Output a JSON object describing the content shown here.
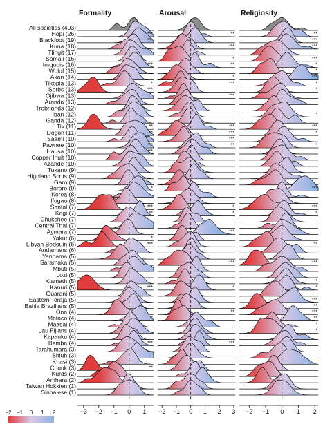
{
  "chart_data": {
    "type": "ridgeline",
    "panels": [
      {
        "title": "Formality",
        "xticks": [
          "−3",
          "−2",
          "−1",
          "0",
          "1"
        ],
        "xlim": [
          -3.4,
          1.6
        ],
        "zero_line": 0
      },
      {
        "title": "Arousal",
        "xticks": [
          "−2",
          "−1",
          "0",
          "1",
          "2",
          "3"
        ],
        "xlim": [
          -2.3,
          3.1
        ],
        "zero_line": 0
      },
      {
        "title": "Religiosity",
        "xticks": [
          "−2",
          "−1",
          "0",
          "1",
          "2"
        ],
        "xlim": [
          -2.6,
          2.2
        ],
        "zero_line": 0
      }
    ],
    "colorbar": {
      "ticks": [
        "−2",
        "−1",
        "0",
        "1",
        "2"
      ],
      "low_color": "#e03c3c",
      "mid_color": "#d9c9e6",
      "high_color": "#8eb2e3",
      "range": [
        -2,
        2
      ]
    },
    "rows": [
      {
        "label": "All societies (493)",
        "peaks": [
          0.3,
          0.2,
          0.0
        ],
        "sig": [
          "",
          "",
          ""
        ]
      },
      {
        "label": "Hopi (26)",
        "peaks": [
          0.5,
          0.1,
          0.1
        ],
        "sig": [
          "***",
          "**",
          "**"
        ]
      },
      {
        "label": "Blackfoot (19)",
        "peaks": [
          0.6,
          0.3,
          0.2
        ],
        "sig": [
          "***",
          "",
          "***"
        ]
      },
      {
        "label": "Kuna (18)",
        "peaks": [
          0.3,
          -0.6,
          0.4
        ],
        "sig": [
          "",
          "***",
          "***"
        ]
      },
      {
        "label": "Tlingit (17)",
        "peaks": [
          0.2,
          -0.2,
          -0.3
        ],
        "sig": [
          "",
          "",
          ""
        ]
      },
      {
        "label": "Somali (16)",
        "peaks": [
          0.1,
          -0.8,
          -0.9
        ],
        "sig": [
          "",
          "*",
          "***"
        ]
      },
      {
        "label": "Iroquois (16)",
        "peaks": [
          0.5,
          0.3,
          0.3
        ],
        "sig": [
          "***",
          "**",
          "*"
        ]
      },
      {
        "label": "Wolof (15)",
        "peaks": [
          0.0,
          -0.5,
          -0.7
        ],
        "sig": [
          "",
          "",
          "*"
        ]
      },
      {
        "label": "Akan (14)",
        "peaks": [
          -0.2,
          -0.8,
          1.1
        ],
        "sig": [
          "",
          "*",
          "***"
        ]
      },
      {
        "label": "Tikopia (13)",
        "peaks": [
          -0.3,
          -0.7,
          -0.2
        ],
        "sig": [
          "*",
          "***",
          "*"
        ]
      },
      {
        "label": "Serbs (13)",
        "peaks": [
          -2.3,
          -0.6,
          -0.4
        ],
        "sig": [
          "***",
          "",
          "*"
        ]
      },
      {
        "label": "Ojibwa (13)",
        "peaks": [
          0.2,
          -0.5,
          -0.2
        ],
        "sig": [
          "",
          "***",
          ""
        ]
      },
      {
        "label": "Aranda (13)",
        "peaks": [
          0.0,
          -0.3,
          0.0
        ],
        "sig": [
          "",
          "",
          ""
        ]
      },
      {
        "label": "Trobriands (12)",
        "peaks": [
          0.4,
          -0.4,
          -0.5
        ],
        "sig": [
          "",
          "",
          ""
        ]
      },
      {
        "label": "Iban (12)",
        "peaks": [
          0.3,
          -0.2,
          0.0
        ],
        "sig": [
          "",
          "",
          "*"
        ]
      },
      {
        "label": "Ganda (12)",
        "peaks": [
          0.1,
          0.0,
          -0.3
        ],
        "sig": [
          "",
          "",
          ""
        ]
      },
      {
        "label": "Tiv (11)",
        "peaks": [
          -2.3,
          0.4,
          -0.9
        ],
        "sig": [
          "**",
          "***",
          "***"
        ]
      },
      {
        "label": "Dogon (11)",
        "peaks": [
          0.4,
          -1.0,
          -0.2
        ],
        "sig": [
          "**",
          "***",
          "*"
        ]
      },
      {
        "label": "Saami (10)",
        "peaks": [
          0.2,
          -0.5,
          0.1
        ],
        "sig": [
          "",
          "***",
          ""
        ]
      },
      {
        "label": "Pawnee (10)",
        "peaks": [
          0.6,
          0.4,
          -0.5
        ],
        "sig": [
          "***",
          "**",
          "*"
        ]
      },
      {
        "label": "Hausa (10)",
        "peaks": [
          0.5,
          0.1,
          -0.2
        ],
        "sig": [
          "***",
          "",
          ""
        ]
      },
      {
        "label": "Copper Inuit (10)",
        "peaks": [
          0.1,
          0.0,
          0.0
        ],
        "sig": [
          "",
          "",
          ""
        ]
      },
      {
        "label": "Azande (10)",
        "peaks": [
          0.2,
          -0.3,
          -0.3
        ],
        "sig": [
          "",
          "",
          ""
        ]
      },
      {
        "label": "Tukano (9)",
        "peaks": [
          0.3,
          -0.1,
          0.1
        ],
        "sig": [
          "",
          "",
          ""
        ]
      },
      {
        "label": "Highland Scots (9)",
        "peaks": [
          0.0,
          0.2,
          -0.2
        ],
        "sig": [
          "",
          "",
          ""
        ]
      },
      {
        "label": "Garo (9)",
        "peaks": [
          0.0,
          -0.8,
          -0.4
        ],
        "sig": [
          "",
          "",
          ""
        ]
      },
      {
        "label": "Bororo (9)",
        "peaks": [
          0.4,
          -0.5,
          1.2
        ],
        "sig": [
          "*",
          "",
          "***"
        ]
      },
      {
        "label": "Korea (8)",
        "peaks": [
          0.5,
          0.2,
          0.0
        ],
        "sig": [
          "",
          "",
          ""
        ]
      },
      {
        "label": "Ifugao (8)",
        "peaks": [
          -0.1,
          -0.3,
          -0.2
        ],
        "sig": [
          "",
          "",
          ""
        ]
      },
      {
        "label": "Santal (7)",
        "peaks": [
          -1.8,
          -0.7,
          -1.2
        ],
        "sig": [
          "***",
          "*",
          "***"
        ]
      },
      {
        "label": "Kogi (7)",
        "peaks": [
          0.7,
          0.5,
          0.0
        ],
        "sig": [
          "**",
          "*",
          "*"
        ]
      },
      {
        "label": "Chukchee (7)",
        "peaks": [
          0.1,
          -0.3,
          0.0
        ],
        "sig": [
          "",
          "",
          ""
        ]
      },
      {
        "label": "Central Thai (7)",
        "peaks": [
          0.4,
          -0.2,
          0.2
        ],
        "sig": [
          "",
          "",
          ""
        ]
      },
      {
        "label": "Aymara (7)",
        "peaks": [
          -0.2,
          1.3,
          0.0
        ],
        "sig": [
          "",
          "***",
          ""
        ]
      },
      {
        "label": "Yakut (6)",
        "peaks": [
          -1.3,
          -0.6,
          0.0
        ],
        "sig": [
          "*",
          "",
          ""
        ]
      },
      {
        "label": "Libyan Bedouin (6)",
        "peaks": [
          -1.8,
          -0.2,
          -1.0
        ],
        "sig": [
          "***",
          "",
          "**"
        ]
      },
      {
        "label": "Andamans (6)",
        "peaks": [
          0.1,
          0.1,
          -0.2
        ],
        "sig": [
          "",
          "",
          ""
        ]
      },
      {
        "label": "Yanoama (5)",
        "peaks": [
          -0.5,
          -0.1,
          0.3
        ],
        "sig": [
          "",
          "",
          ""
        ]
      },
      {
        "label": "Saramaka (5)",
        "peaks": [
          0.2,
          -0.9,
          -1.5
        ],
        "sig": [
          "",
          "***",
          "***"
        ]
      },
      {
        "label": "Mbuti (5)",
        "peaks": [
          0.3,
          0.4,
          0.0
        ],
        "sig": [
          "",
          "",
          ""
        ]
      },
      {
        "label": "Lozi (5)",
        "peaks": [
          -0.2,
          -0.1,
          0.2
        ],
        "sig": [
          "",
          "",
          ""
        ]
      },
      {
        "label": "Klamath (5)",
        "peaks": [
          0.3,
          -0.4,
          0.2
        ],
        "sig": [
          "",
          "",
          "*"
        ]
      },
      {
        "label": "Kanuri (5)",
        "peaks": [
          -2.8,
          0.5,
          0.3
        ],
        "sig": [
          "***",
          "*",
          "*"
        ]
      },
      {
        "label": "Guarani (5)",
        "peaks": [
          0.2,
          -0.5,
          -0.4
        ],
        "sig": [
          "",
          "",
          ""
        ]
      },
      {
        "label": "Eastern Toraja (5)",
        "peaks": [
          0.0,
          0.3,
          0.5
        ],
        "sig": [
          "",
          "",
          "***"
        ]
      },
      {
        "label": "Bahia Brazilians (5)",
        "peaks": [
          0.3,
          -0.3,
          -1.4
        ],
        "sig": [
          "",
          "",
          "**"
        ]
      },
      {
        "label": "Ona (4)",
        "peaks": [
          -0.7,
          -0.9,
          -0.4
        ],
        "sig": [
          "",
          "**",
          "***"
        ]
      },
      {
        "label": "Mataco (4)",
        "peaks": [
          0.5,
          -0.5,
          0.6
        ],
        "sig": [
          "*",
          "",
          "**"
        ]
      },
      {
        "label": "Maasai (4)",
        "peaks": [
          0.2,
          0.4,
          -0.6
        ],
        "sig": [
          "",
          "",
          "*"
        ]
      },
      {
        "label": "Lau Fijians (4)",
        "peaks": [
          0.4,
          0.2,
          -0.7
        ],
        "sig": [
          "",
          "",
          "*"
        ]
      },
      {
        "label": "Kapauku (4)",
        "peaks": [
          -0.2,
          0.5,
          0.3
        ],
        "sig": [
          "",
          "",
          ""
        ]
      },
      {
        "label": "Bemba (4)",
        "peaks": [
          0.3,
          0.6,
          0.0
        ],
        "sig": [
          "***",
          "***",
          ""
        ]
      },
      {
        "label": "Tarahumara (3)",
        "peaks": [
          0.1,
          -0.1,
          0.4
        ],
        "sig": [
          "",
          "",
          ""
        ]
      },
      {
        "label": "Shluh (3)",
        "peaks": [
          0.5,
          0.0,
          -0.2
        ],
        "sig": [
          "",
          "",
          ""
        ]
      },
      {
        "label": "Khasi (3)",
        "peaks": [
          -0.1,
          -0.6,
          0.4
        ],
        "sig": [
          "",
          "",
          ""
        ]
      },
      {
        "label": "Chuuk (3)",
        "peaks": [
          -2.4,
          -0.3,
          -0.5
        ],
        "sig": [
          "**",
          "",
          ""
        ]
      },
      {
        "label": "Kurds (2)",
        "peaks": [
          -1.0,
          0.2,
          -0.9
        ],
        "sig": [
          "",
          "",
          ""
        ]
      },
      {
        "label": "Amhara (2)",
        "peaks": [
          -1.6,
          0.9,
          -1.2
        ],
        "sig": [
          "",
          "",
          ""
        ]
      },
      {
        "label": "Taiwan Hokkien (1)",
        "peaks": [
          0.0,
          0.0,
          0.0
        ],
        "sig": [
          "",
          "",
          ""
        ]
      },
      {
        "label": "Sinhalese (1)",
        "peaks": [
          0.0,
          0.0,
          0.0
        ],
        "sig": [
          "",
          "",
          ""
        ]
      }
    ]
  }
}
